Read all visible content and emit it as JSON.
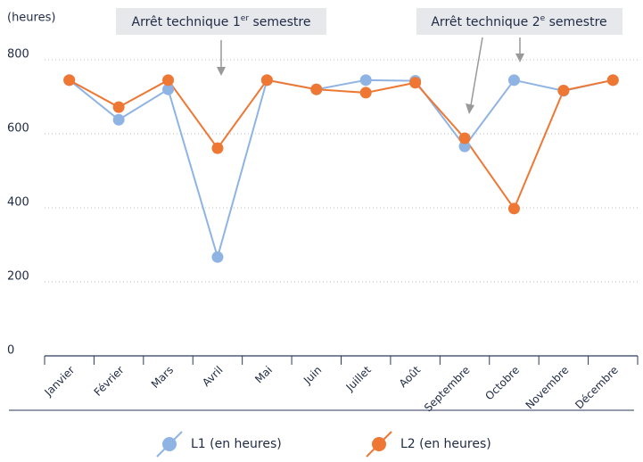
{
  "chart_data": {
    "type": "line",
    "y_label": "(heures)",
    "categories": [
      "Janvier",
      "Février",
      "Mars",
      "Avril",
      "Mai",
      "Juin",
      "Juillet",
      "Août",
      "Septembre",
      "Octobre",
      "Novembre",
      "Décembre"
    ],
    "series": [
      {
        "name": "L1 (en heures)",
        "color": "#8fb4e3",
        "values": [
          745,
          638,
          720,
          267,
          745,
          720,
          745,
          743,
          566,
          745,
          716,
          745
        ]
      },
      {
        "name": "L2 (en heures)",
        "color": "#ee7733",
        "values": [
          745,
          672,
          745,
          561,
          745,
          720,
          711,
          738,
          588,
          398,
          717,
          745
        ]
      }
    ],
    "ylim": [
      0,
      800
    ],
    "yticks": [
      0,
      200,
      400,
      600,
      800
    ],
    "grid": true,
    "annotations": [
      {
        "text": "Arrêt technique 1",
        "sup": "er",
        "rest": " semestre"
      },
      {
        "text": "Arrêt technique 2",
        "sup": "e",
        "rest": " semestre"
      }
    ]
  }
}
